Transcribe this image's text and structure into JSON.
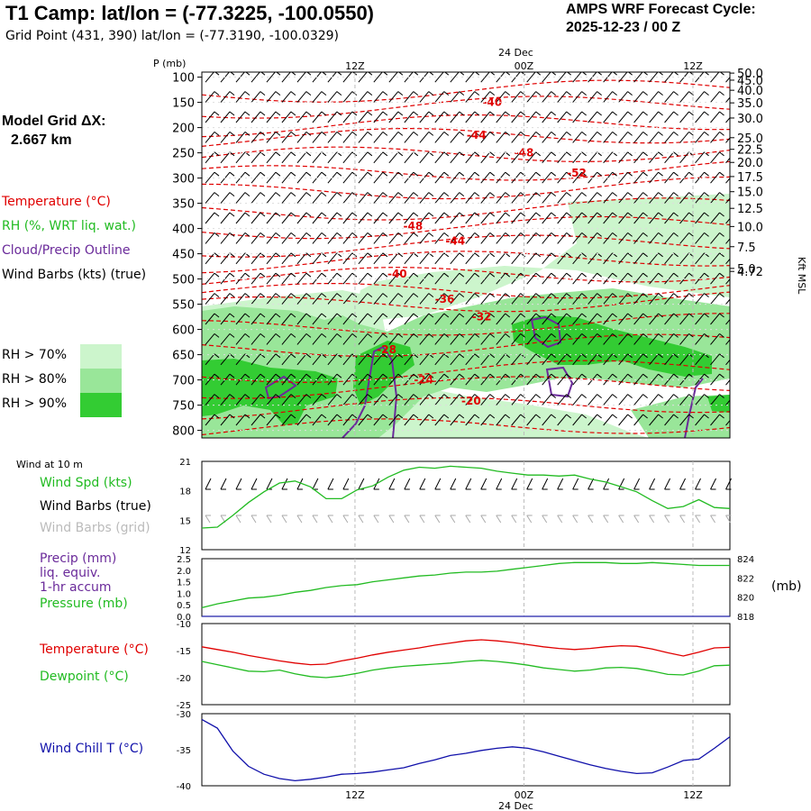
{
  "header": {
    "title": "T1 Camp:  lat/lon = (-77.3225, -100.0550)",
    "grid_point": "Grid Point (431, 390) lat/lon = (-77.3190, -100.0329)",
    "cycle_label": "AMPS WRF Forecast Cycle:",
    "cycle_value": "2025-12-23 / 00  Z"
  },
  "model_grid": {
    "label": "Model Grid ΔX:",
    "value": "2.667 km"
  },
  "legend": {
    "temperature": "Temperature (°C)",
    "rh": "RH (%, WRT liq. wat.)",
    "cloud": "Cloud/Precip Outline",
    "wind": "Wind Barbs (kts) (true)",
    "rh70": "RH > 70%",
    "rh80": "RH > 80%",
    "rh90": "RH > 90%"
  },
  "colors": {
    "temperature": "#e00000",
    "rh70": "#ccf5cc",
    "rh80": "#99e699",
    "rh90": "#33cc33",
    "cloud": "#6a2a9a",
    "wind_speed": "#22bb22",
    "precip": "#2222aa",
    "dewpoint": "#22bb22",
    "wind_chill": "#1010aa",
    "grid_barbs": "#aaaaaa"
  },
  "time_axis": {
    "top_date": "24 Dec",
    "bottom_date": "24 Dec",
    "labels": [
      "12Z",
      "00Z",
      "12Z"
    ]
  },
  "chart_data": [
    {
      "type": "heatmap",
      "name": "cross-section",
      "ylabel": "P (mb)",
      "right_label": "Kft MSL",
      "pressure_ticks": [
        100,
        150,
        200,
        250,
        300,
        350,
        400,
        450,
        500,
        550,
        600,
        650,
        700,
        750,
        800
      ],
      "pressure_labels": [
        "100",
        "150",
        "200",
        "250",
        "300",
        "350",
        "400",
        "450",
        "500",
        "550",
        "600",
        "650",
        "700",
        "750",
        "800"
      ],
      "ylim": [
        90,
        815
      ],
      "height_ticks_kft": [
        {
          "p": 92,
          "label": "50.0"
        },
        {
          "p": 106,
          "label": "45.0"
        },
        {
          "p": 126,
          "label": "40.0"
        },
        {
          "p": 151,
          "label": "35.0"
        },
        {
          "p": 181,
          "label": "30.0"
        },
        {
          "p": 220,
          "label": "25.0"
        },
        {
          "p": 243,
          "label": "22.5"
        },
        {
          "p": 269,
          "label": "20.0"
        },
        {
          "p": 297,
          "label": "17.5"
        },
        {
          "p": 327,
          "label": "15.0"
        },
        {
          "p": 360,
          "label": "12.5"
        },
        {
          "p": 396,
          "label": "10.0"
        },
        {
          "p": 436,
          "label": "7.5"
        },
        {
          "p": 479,
          "label": "5.0"
        },
        {
          "p": 485,
          "label": "4.72"
        }
      ],
      "temperature_labels": [
        {
          "t": 0.55,
          "p": 150,
          "label": "-40"
        },
        {
          "t": 0.52,
          "p": 215,
          "label": "-44"
        },
        {
          "t": 0.61,
          "p": 250,
          "label": "-48"
        },
        {
          "t": 0.71,
          "p": 290,
          "label": "-52"
        },
        {
          "t": 0.4,
          "p": 395,
          "label": "-48"
        },
        {
          "t": 0.48,
          "p": 425,
          "label": "-44"
        },
        {
          "t": 0.37,
          "p": 490,
          "label": "-40"
        },
        {
          "t": 0.46,
          "p": 540,
          "label": "-36"
        },
        {
          "t": 0.53,
          "p": 575,
          "label": "-32"
        },
        {
          "t": 0.35,
          "p": 640,
          "label": "-28"
        },
        {
          "t": 0.42,
          "p": 700,
          "label": "-24"
        },
        {
          "t": 0.51,
          "p": 742,
          "label": "-20"
        }
      ],
      "x_ticks": [
        {
          "t": 0.29,
          "label": "12Z"
        },
        {
          "t": 0.61,
          "label": "00Z"
        },
        {
          "t": 0.93,
          "label": "12Z"
        }
      ]
    },
    {
      "type": "line",
      "name": "wind",
      "title": "Wind at 10 m",
      "ylim": [
        12,
        21
      ],
      "y_ticks": [
        "12",
        "15",
        "18",
        "21"
      ],
      "series": [
        {
          "name": "Wind Spd (kts)",
          "values": [
            14.2,
            14.3,
            15.5,
            16.8,
            17.9,
            18.8,
            19.0,
            18.4,
            17.2,
            17.2,
            18.1,
            18.5,
            19.4,
            20.1,
            20.4,
            20.3,
            20.5,
            20.4,
            20.3,
            20.0,
            19.8,
            19.6,
            19.6,
            19.5,
            19.6,
            19.2,
            18.9,
            18.4,
            17.9,
            17.0,
            16.2,
            16.4,
            17.1,
            16.3,
            16.2
          ]
        }
      ],
      "legend": [
        "Wind Spd (kts)",
        "Wind Barbs (true)",
        "Wind Barbs (grid)"
      ]
    },
    {
      "type": "line",
      "name": "precip-pressure",
      "left_ylim": [
        0,
        2.5
      ],
      "left_ticks": [
        "0.0",
        "0.5",
        "1.0",
        "1.5",
        "2.0",
        "2.5"
      ],
      "right_ylim": [
        818,
        824
      ],
      "right_ticks": [
        "818",
        "820",
        "822",
        "824"
      ],
      "right_label": "(mb)",
      "series": [
        {
          "name": "Pressure (mb)",
          "values": [
            818.9,
            819.3,
            819.6,
            819.9,
            820.0,
            820.2,
            820.5,
            820.7,
            821.0,
            821.2,
            821.3,
            821.6,
            821.8,
            822.0,
            822.2,
            822.3,
            822.5,
            822.6,
            822.6,
            822.7,
            822.9,
            823.1,
            823.3,
            823.5,
            823.6,
            823.6,
            823.6,
            823.5,
            823.5,
            823.6,
            823.5,
            823.4,
            823.3,
            823.3,
            823.3
          ]
        },
        {
          "name": "Precip (mm)",
          "values": [
            0,
            0,
            0,
            0,
            0,
            0,
            0,
            0,
            0,
            0,
            0,
            0,
            0,
            0,
            0,
            0,
            0,
            0,
            0,
            0,
            0,
            0,
            0,
            0,
            0,
            0,
            0,
            0,
            0,
            0,
            0,
            0,
            0,
            0,
            0
          ]
        }
      ],
      "legend": [
        "Precip (mm)",
        "liq. equiv.",
        "1-hr accum",
        "Pressure (mb)"
      ]
    },
    {
      "type": "line",
      "name": "temperature",
      "ylim": [
        -25,
        -10
      ],
      "y_ticks": [
        "-10",
        "-15",
        "-20",
        "-25"
      ],
      "series": [
        {
          "name": "Temperature (°C)",
          "values": [
            -14.3,
            -14.8,
            -15.3,
            -15.9,
            -16.4,
            -16.9,
            -17.3,
            -17.6,
            -17.5,
            -16.9,
            -16.4,
            -15.8,
            -15.3,
            -14.9,
            -14.5,
            -14.0,
            -13.6,
            -13.2,
            -13.0,
            -13.2,
            -13.5,
            -13.9,
            -14.3,
            -14.6,
            -14.8,
            -14.6,
            -14.3,
            -14.1,
            -14.2,
            -14.7,
            -15.4,
            -16.0,
            -15.3,
            -14.5,
            -14.4
          ]
        },
        {
          "name": "Dewpoint (°C)",
          "values": [
            -17.0,
            -17.6,
            -18.2,
            -18.8,
            -18.9,
            -18.6,
            -19.3,
            -19.8,
            -20.0,
            -19.7,
            -19.2,
            -18.6,
            -18.2,
            -17.9,
            -17.7,
            -17.5,
            -17.3,
            -17.0,
            -16.8,
            -17.0,
            -17.3,
            -17.7,
            -18.2,
            -18.5,
            -18.8,
            -18.6,
            -18.2,
            -18.1,
            -18.3,
            -18.8,
            -19.4,
            -19.5,
            -18.8,
            -17.8,
            -17.7
          ]
        }
      ],
      "legend": [
        "Temperature (°C)",
        "Dewpoint (°C)"
      ]
    },
    {
      "type": "line",
      "name": "wind-chill",
      "ylim": [
        -40,
        -30
      ],
      "y_ticks": [
        "-30",
        "-35",
        "-40"
      ],
      "series": [
        {
          "name": "Wind Chill T (°C)",
          "values": [
            -30.8,
            -32.0,
            -35.2,
            -37.3,
            -38.4,
            -39.0,
            -39.3,
            -39.1,
            -38.8,
            -38.4,
            -38.3,
            -38.1,
            -37.8,
            -37.5,
            -36.9,
            -36.4,
            -35.8,
            -35.5,
            -35.1,
            -34.8,
            -34.6,
            -34.8,
            -35.3,
            -35.9,
            -36.5,
            -37.1,
            -37.6,
            -38.0,
            -38.3,
            -38.2,
            -37.4,
            -36.5,
            -36.3,
            -34.8,
            -33.2
          ]
        }
      ],
      "legend": [
        "Wind Chill T (°C)"
      ]
    }
  ]
}
